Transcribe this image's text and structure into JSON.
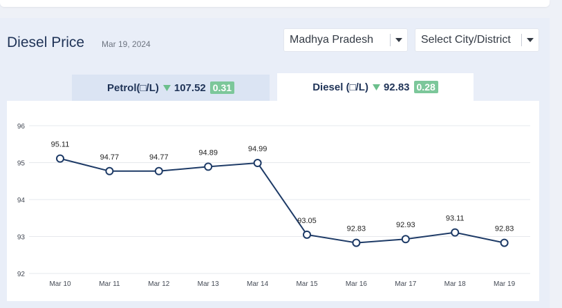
{
  "header": {
    "title": "Diesel Price",
    "date": "Mar 19, 2024"
  },
  "filters": {
    "state": "Madhya Pradesh",
    "city": "Select City/District"
  },
  "tabs": {
    "petrol": {
      "label": "Petrol(□/L)",
      "price": "107.52",
      "change": "0.31"
    },
    "diesel": {
      "label": "Diesel (□/L)",
      "price": "92.83",
      "change": "0.28"
    }
  },
  "colors": {
    "line": "#1d3a66",
    "badge": "#7cc79a",
    "arrow": "#6cbf8c"
  },
  "icons": {
    "dropdown": "caret-down-icon",
    "trend": "triangle-down-icon"
  },
  "chart_data": {
    "type": "line",
    "categories": [
      "Mar 10",
      "Mar 11",
      "Mar 12",
      "Mar 13",
      "Mar 14",
      "Mar 15",
      "Mar 16",
      "Mar 17",
      "Mar 18",
      "Mar 19"
    ],
    "values": [
      95.11,
      94.77,
      94.77,
      94.89,
      94.99,
      93.05,
      92.83,
      92.93,
      93.11,
      92.83
    ],
    "labels": [
      "95.11",
      "94.77",
      "94.77",
      "94.89",
      "94.99",
      "93.05",
      "92.83",
      "92.93",
      "93.11",
      "92.83"
    ],
    "yticks": [
      "92",
      "93",
      "94",
      "95",
      "96"
    ],
    "ylim": [
      92,
      96
    ],
    "grid": true
  }
}
